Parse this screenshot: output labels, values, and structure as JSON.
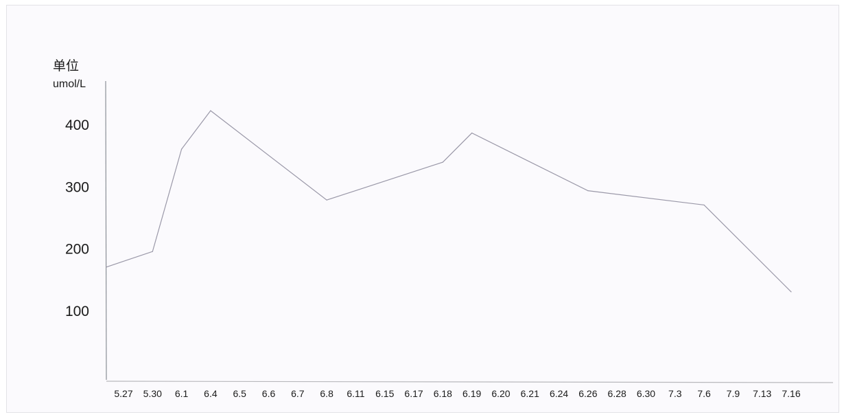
{
  "chart_data": {
    "type": "line",
    "title": "",
    "ylabel": "单位",
    "yunit": "umol/L",
    "xlabel": "",
    "ylim": [
      0,
      470
    ],
    "yticks": [
      100,
      200,
      300,
      400
    ],
    "grid": false,
    "categories": [
      "5.27",
      "5.30",
      "6.1",
      "6.4",
      "6.5",
      "6.6",
      "6.7",
      "6.8",
      "6.11",
      "6.15",
      "6.17",
      "6.18",
      "6.19",
      "6.20",
      "6.21",
      "6.24",
      "6.26",
      "6.28",
      "6.30",
      "7.3",
      "7.6",
      "7.9",
      "7.13",
      "7.16"
    ],
    "series": [
      {
        "points": [
          {
            "x": "5.27",
            "y": 170
          },
          {
            "x": "5.30",
            "y": 195
          },
          {
            "x": "6.1",
            "y": 360
          },
          {
            "x": "6.4",
            "y": 422
          },
          {
            "x": "6.8",
            "y": 278
          },
          {
            "x": "6.18",
            "y": 339
          },
          {
            "x": "6.19",
            "y": 386
          },
          {
            "x": "6.26",
            "y": 293
          },
          {
            "x": "7.6",
            "y": 270
          },
          {
            "x": "7.16",
            "y": 130
          }
        ],
        "color": "#9a98a8"
      }
    ],
    "axis_color": "#8a8f96"
  }
}
